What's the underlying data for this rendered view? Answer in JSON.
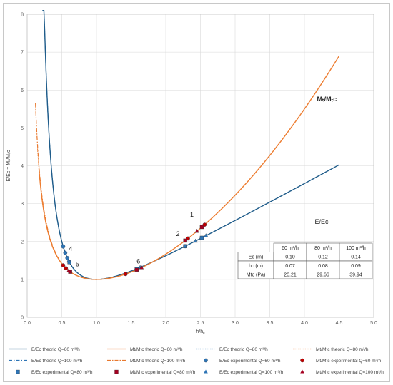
{
  "chart_data": {
    "type": "line",
    "xlabel": "h/hc",
    "ylabel": "E/Ec = Mt/Mtc",
    "xlim": [
      0,
      5
    ],
    "ylim": [
      0,
      8
    ],
    "xticks": [
      "0.0",
      "0.5",
      "1.0",
      "1.5",
      "2.0",
      "2.5",
      "3.0",
      "3.5",
      "4.0",
      "4.5",
      "5.0"
    ],
    "yticks": [
      "0",
      "1",
      "2",
      "3",
      "4",
      "5",
      "6",
      "7",
      "8"
    ],
    "grid": true,
    "legend_position": "bottom",
    "annotations": {
      "curve_m": "Mt/Mtc",
      "curve_e": "E/Ec",
      "labels": [
        "1",
        "2",
        "4",
        "5",
        "6"
      ]
    },
    "table": {
      "headers": [
        "",
        "60 m³/h",
        "80 m³/h",
        "100 m³/h"
      ],
      "rows": [
        [
          "Ec (m)",
          "0.10",
          "0.12",
          "0.14"
        ],
        [
          "hc (m)",
          "0.07",
          "0.08",
          "0.09"
        ],
        [
          "Mtc (Pa)",
          "20.21",
          "29.66",
          "39.94"
        ]
      ]
    },
    "legend": [
      "E/Ec theoric Q=60 m³/h",
      "Mt/Mtc theoric Q=60 m³/h",
      "E/Ec theoric Q=80 m³/h",
      "Mt/Mtc theoric Q=80 m³/h",
      "E/Ec theoric Q=100 m³/h",
      "Mt/Mtc theoric Q=100 m³/h",
      "E/Ec experimental Q=60 m³/h",
      "Mt/Mtc experimental Q=60 m³/h",
      "E/Ec experimental Q=80 m³/h",
      "Mt/Mtc experimental Q=80 m³/h",
      "E/Ec experimental Q=100 m³/h",
      "Mt/Mtc experimental Q=100 m³/h"
    ],
    "series": [
      {
        "kind": "E-theoric-60",
        "color": "#1f5c8a",
        "x_range": [
          0.22,
          4.5
        ]
      },
      {
        "kind": "M-theoric-60",
        "color": "#ed7d31",
        "x_range": [
          0.17,
          4.5
        ]
      },
      {
        "kind": "E-theoric-80",
        "color": "#2e75b6",
        "x_range": [
          0.24,
          1.6
        ]
      },
      {
        "kind": "M-theoric-80",
        "color": "#ed7d31",
        "x_range": [
          0.15,
          1.6
        ]
      },
      {
        "kind": "E-theoric-100",
        "color": "#2e75b6",
        "x_range": [
          0.26,
          1.6
        ]
      },
      {
        "kind": "M-theoric-100",
        "color": "#e8792f",
        "x_range": [
          0.12,
          1.6
        ]
      }
    ],
    "experimental": {
      "E60": {
        "color": "#2e75b6",
        "marker": "circle",
        "x": [
          0.52,
          0.55,
          0.58,
          2.28,
          2.52
        ]
      },
      "M60": {
        "color": "#c00000",
        "marker": "circle",
        "x": [
          0.52,
          0.56,
          1.42,
          2.32,
          2.56
        ]
      },
      "E80": {
        "color": "#2e75b6",
        "marker": "square",
        "x": [
          0.61,
          1.58,
          2.28,
          2.52
        ]
      },
      "M80": {
        "color": "#a50021",
        "marker": "square",
        "x": [
          0.62,
          1.58,
          2.28,
          2.52
        ]
      },
      "E100": {
        "color": "#2e75b6",
        "marker": "triangle",
        "x": [
          0.6,
          1.63,
          2.43,
          2.58
        ]
      },
      "M100": {
        "color": "#a50021",
        "marker": "triangle",
        "x": [
          0.6,
          1.65,
          2.45
        ]
      }
    }
  }
}
